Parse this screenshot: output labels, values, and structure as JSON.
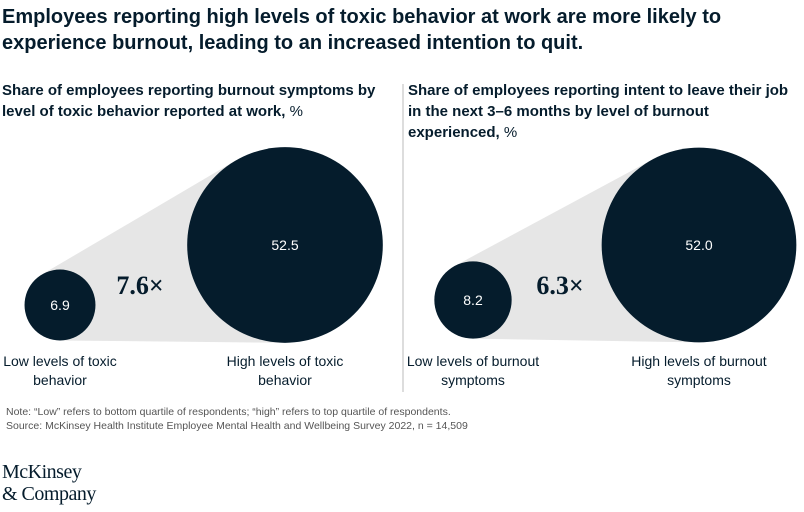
{
  "title": "Employees reporting high levels of toxic behavior at work are more likely to experience burnout, leading to an increased intention to quit.",
  "chart_data": [
    {
      "type": "bubble",
      "title": "Share of employees reporting burnout symptoms by level of toxic behavior reported at work,",
      "unit": "%",
      "categories": [
        "Low levels of toxic behavior",
        "High levels of toxic behavior"
      ],
      "values": [
        6.9,
        52.5
      ],
      "annotation": "7.6×",
      "color": "#051c2c",
      "connector_color": "#e6e6e6"
    },
    {
      "type": "bubble",
      "title": "Share of employees reporting intent to leave their job in the next 3–6 months by level of burnout experienced,",
      "unit": "%",
      "categories": [
        "Low levels of burnout symptoms",
        "High levels of burnout symptoms"
      ],
      "values": [
        8.2,
        52.0
      ],
      "value_labels": [
        "8.2",
        "52.0"
      ],
      "annotation": "6.3×",
      "color": "#051c2c",
      "connector_color": "#e6e6e6"
    }
  ],
  "note": "Note: “Low” refers to bottom quartile of respondents; “high” refers to top quartile of respondents.",
  "source": "Source: McKinsey Health Institute Employee Mental Health and Wellbeing Survey 2022, n = 14,509",
  "logo": [
    "McKinsey",
    "& Company"
  ]
}
